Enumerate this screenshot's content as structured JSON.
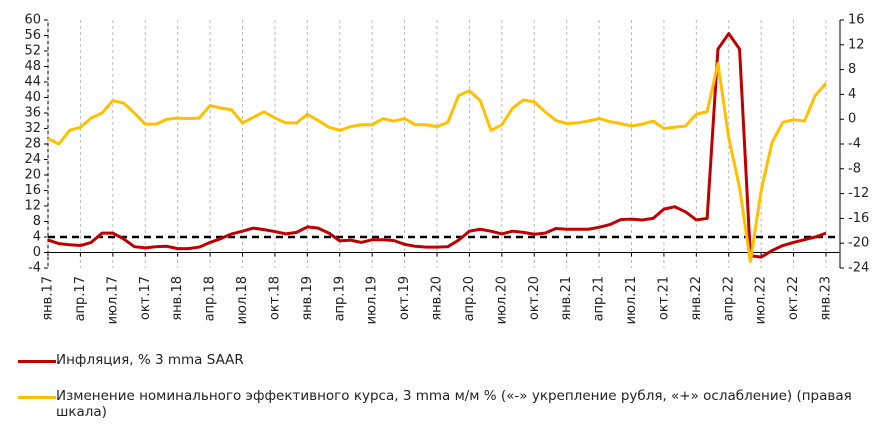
{
  "chart_data": {
    "type": "line",
    "categories": [
      "янв.17",
      null,
      null,
      "апр.17",
      null,
      null,
      "июл.17",
      null,
      null,
      "окт.17",
      null,
      null,
      "янв.18",
      null,
      null,
      "апр.18",
      null,
      null,
      "июл.18",
      null,
      null,
      "окт.18",
      null,
      null,
      "янв.19",
      null,
      null,
      "апр.19",
      null,
      null,
      "июл.19",
      null,
      null,
      "окт.19",
      null,
      null,
      "янв.20",
      null,
      null,
      "апр.20",
      null,
      null,
      "июл.20",
      null,
      null,
      "окт.20",
      null,
      null,
      "янв.21",
      null,
      null,
      "апр.21",
      null,
      null,
      "июл.21",
      null,
      null,
      "окт.21",
      null,
      null,
      "янв.22",
      null,
      null,
      "апр.22",
      null,
      null,
      "июл.22",
      null,
      null,
      "окт.22",
      null,
      null,
      "янв.23"
    ],
    "series": [
      {
        "name": "Инфляция, % 3 mma SAAR",
        "color": "#c00000",
        "axis": "y",
        "values": [
          3.2,
          2.3,
          2.0,
          1.8,
          2.6,
          5.0,
          5.0,
          3.5,
          1.5,
          1.2,
          1.5,
          1.6,
          1.0,
          1.0,
          1.4,
          2.6,
          3.6,
          4.8,
          5.5,
          6.3,
          5.9,
          5.4,
          4.8,
          5.2,
          6.6,
          6.3,
          5.0,
          3.0,
          3.2,
          2.6,
          3.3,
          3.3,
          3.1,
          2.1,
          1.6,
          1.4,
          1.4,
          1.5,
          3.2,
          5.5,
          6.0,
          5.5,
          4.8,
          5.5,
          5.2,
          4.7,
          5.0,
          6.2,
          6.0,
          6.0,
          6.0,
          6.5,
          7.2,
          8.5,
          8.6,
          8.4,
          8.8,
          11.2,
          11.8,
          10.5,
          8.4,
          8.8,
          52.5,
          56.5,
          52.5,
          -0.8,
          -1.2,
          0.5,
          1.8,
          2.6,
          3.3,
          4.0,
          5.0
        ]
      },
      {
        "name": "Изменение номинального эффективного курса, 3 mma м/м % («-» укрепление рубля, «+» ослабление) (правая шкала)",
        "color": "#ffc000",
        "axis": "y2",
        "values": [
          -3.1,
          -4.0,
          -1.8,
          -1.3,
          0.2,
          1.0,
          3.0,
          2.6,
          1.0,
          -0.8,
          -0.8,
          0.0,
          0.2,
          0.1,
          0.2,
          2.2,
          1.8,
          1.5,
          -0.6,
          0.3,
          1.2,
          0.2,
          -0.6,
          -0.6,
          0.8,
          -0.2,
          -1.3,
          -1.8,
          -1.2,
          -0.9,
          -0.9,
          0.1,
          -0.3,
          0.1,
          -0.9,
          -0.9,
          -1.2,
          -0.5,
          3.8,
          4.6,
          3.0,
          -1.8,
          -0.9,
          1.8,
          3.1,
          2.8,
          1.2,
          -0.2,
          -0.7,
          -0.6,
          -0.3,
          0.1,
          -0.4,
          -0.7,
          -1.1,
          -0.8,
          -0.3,
          -1.5,
          -1.3,
          -1.1,
          0.8,
          1.2,
          9.0,
          -3.0,
          -11.0,
          -23.0,
          -11.5,
          -3.8,
          -0.5,
          -0.1,
          -0.3,
          3.8,
          5.8
        ]
      }
    ],
    "reference_line": {
      "value": 4,
      "color": "#000000",
      "axis": "y"
    },
    "ylim": [
      -4,
      60
    ],
    "yticks": [
      -4,
      0,
      4,
      8,
      12,
      16,
      20,
      24,
      28,
      32,
      36,
      40,
      44,
      48,
      52,
      56,
      60
    ],
    "y2lim": [
      -24,
      16
    ],
    "y2ticks": [
      -24,
      -20,
      -16,
      -12,
      -8,
      -4,
      0,
      4,
      8,
      12,
      16
    ],
    "grid": true
  }
}
